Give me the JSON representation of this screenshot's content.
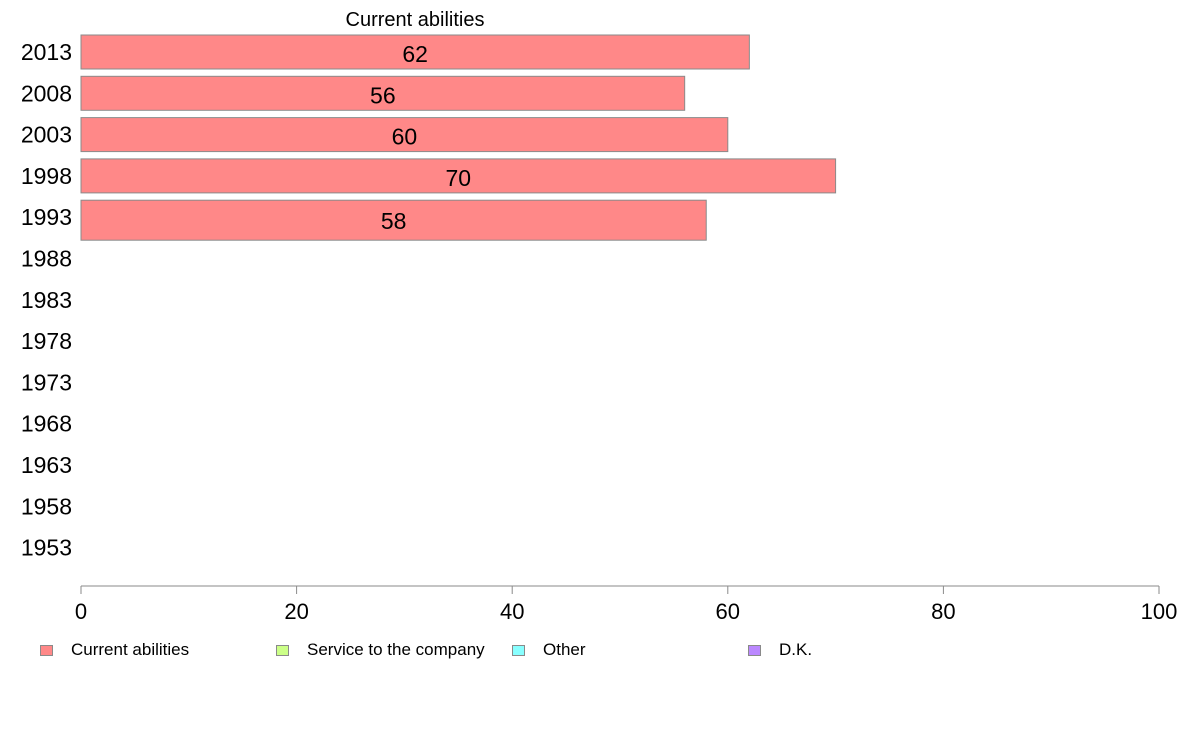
{
  "chart_data": {
    "type": "bar",
    "orientation": "horizontal",
    "title": "Current abilities",
    "categories": [
      "2013",
      "2008",
      "2003",
      "1998",
      "1993",
      "1988",
      "1983",
      "1978",
      "1973",
      "1968",
      "1963",
      "1958",
      "1953"
    ],
    "series": [
      {
        "name": "Current abilities",
        "color": "#ff8888",
        "values": [
          62,
          56,
          60,
          70,
          58,
          null,
          null,
          null,
          null,
          null,
          null,
          null,
          null
        ]
      },
      {
        "name": "Service to the company",
        "color": "#ccff88",
        "values": [
          null,
          null,
          null,
          null,
          null,
          null,
          null,
          null,
          null,
          null,
          null,
          null,
          null
        ]
      },
      {
        "name": "Other",
        "color": "#88ffff",
        "values": [
          null,
          null,
          null,
          null,
          null,
          null,
          null,
          null,
          null,
          null,
          null,
          null,
          null
        ]
      },
      {
        "name": "D.K.",
        "color": "#bb88ff",
        "values": [
          null,
          null,
          null,
          null,
          null,
          null,
          null,
          null,
          null,
          null,
          null,
          null,
          null
        ]
      }
    ],
    "data_labels": [
      "62",
      "56",
      "60",
      "70",
      "58"
    ],
    "xlim": [
      0,
      100
    ],
    "xticks": [
      "0",
      "20",
      "40",
      "60",
      "80",
      "100"
    ],
    "grid": false,
    "legend_position": "bottom"
  }
}
